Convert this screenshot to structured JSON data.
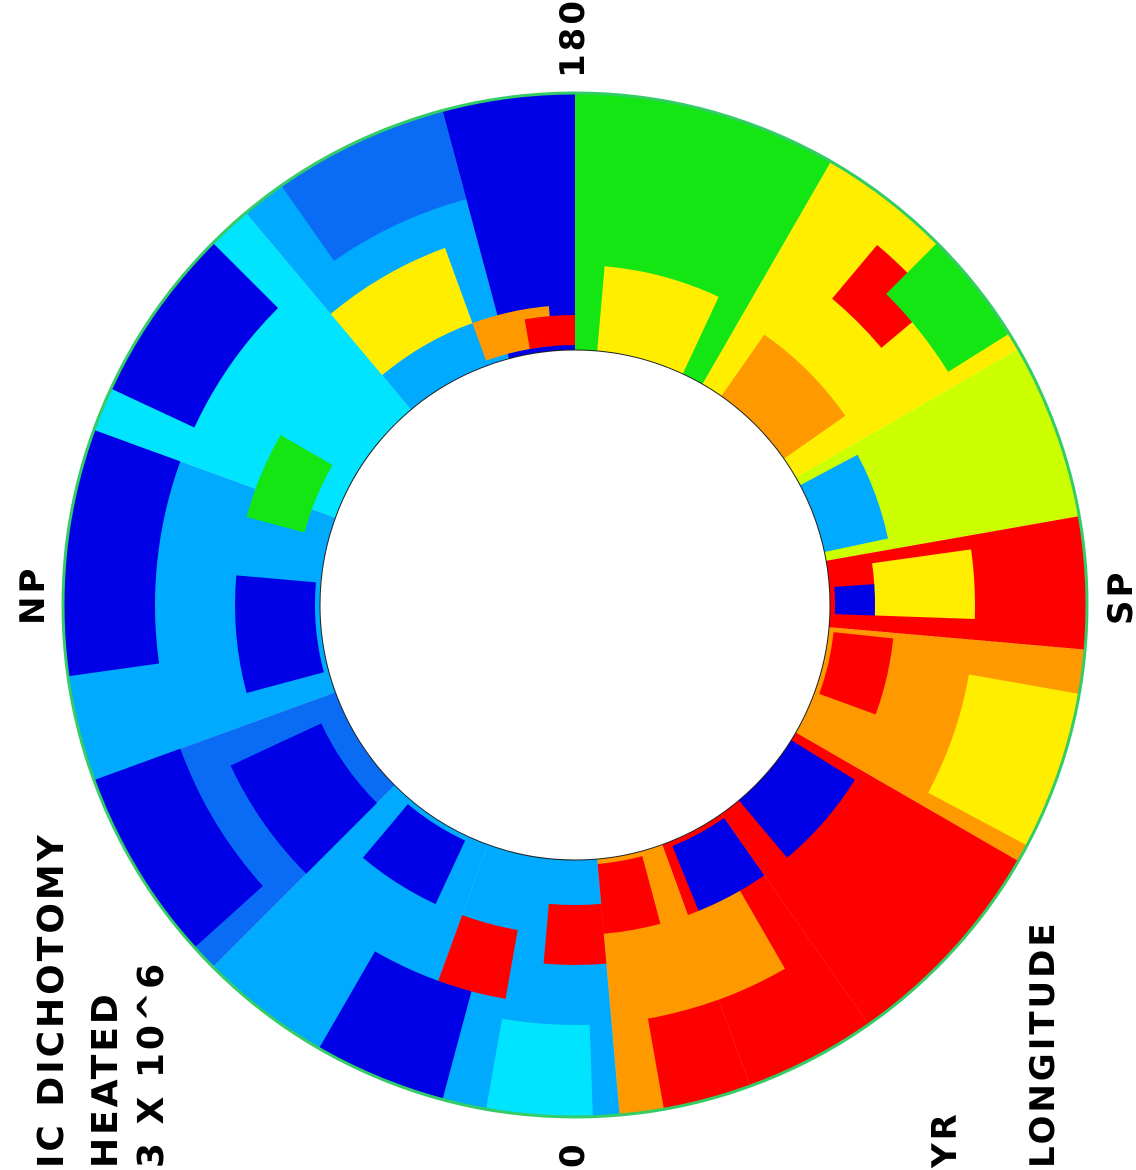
{
  "labels": {
    "top": "180",
    "bottom": "0",
    "left": "NP",
    "right": "SP",
    "title_line1": "IC DICHOTOMY",
    "title_line2": "HEATED",
    "title_line3": "3 X 10^6",
    "yr": "YR",
    "longitude": "LONGITUDE"
  },
  "colors": {
    "dark_blue": "#0000e6",
    "blue": "#0a6cf5",
    "sky_blue": "#00aaff",
    "light_cyan": "#00e4ff",
    "green": "#14e614",
    "yellow_green": "#ccff00",
    "yellow": "#ffee00",
    "orange": "#ff9900",
    "dark_orange": "#ff5500",
    "red": "#ff0000",
    "rim": "#33cc66"
  }
}
